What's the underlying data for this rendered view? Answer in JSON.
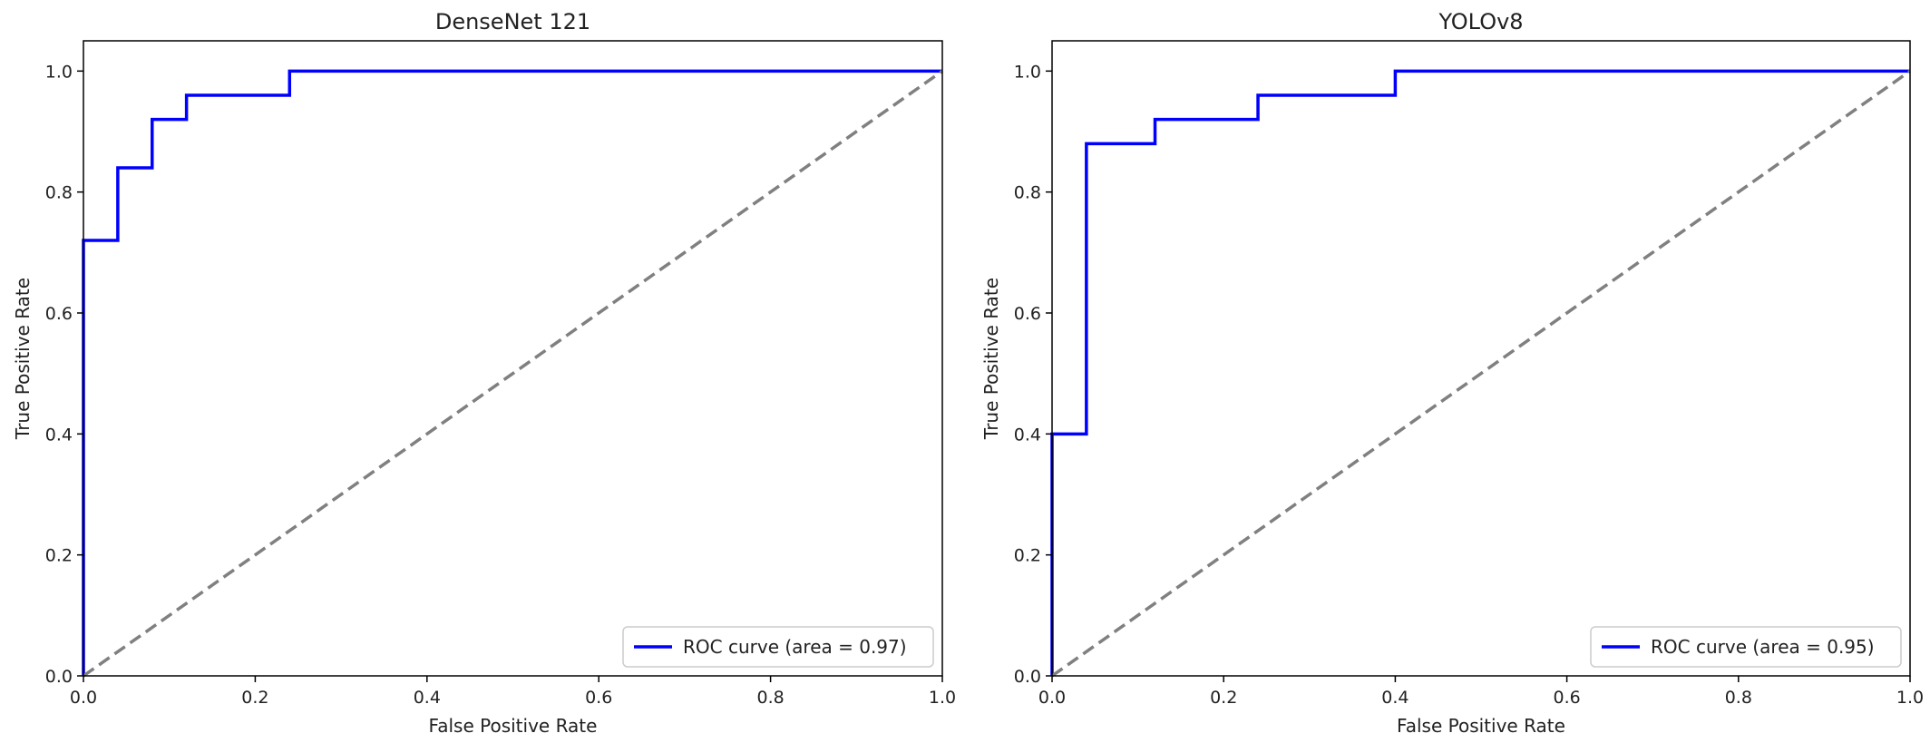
{
  "chart_data": [
    {
      "type": "line",
      "title": "DenseNet 121",
      "xlabel": "False Positive Rate",
      "ylabel": "True Positive Rate",
      "xlim": [
        0.0,
        1.0
      ],
      "ylim": [
        0.0,
        1.05
      ],
      "xticks": [
        "0.0",
        "0.2",
        "0.4",
        "0.6",
        "0.8",
        "1.0"
      ],
      "yticks": [
        "0.0",
        "0.2",
        "0.4",
        "0.6",
        "0.8",
        "1.0"
      ],
      "grid": false,
      "legend": {
        "placement": "lower-right",
        "entries": [
          "ROC curve (area = 0.97)"
        ]
      },
      "series": [
        {
          "name": "ROC curve (area = 0.97)",
          "color": "#0000ff",
          "style": "solid",
          "x": [
            0.0,
            0.0,
            0.04,
            0.04,
            0.08,
            0.08,
            0.12,
            0.12,
            0.24,
            0.24,
            1.0
          ],
          "y": [
            0.0,
            0.72,
            0.72,
            0.84,
            0.84,
            0.92,
            0.92,
            0.96,
            0.96,
            1.0,
            1.0
          ]
        },
        {
          "color": "#808080",
          "style": "dashed",
          "x": [
            0.0,
            1.0
          ],
          "y": [
            0.0,
            1.0
          ]
        }
      ]
    },
    {
      "type": "line",
      "title": "YOLOv8",
      "xlabel": "False Positive Rate",
      "ylabel": "True Positive Rate",
      "xlim": [
        0.0,
        1.0
      ],
      "ylim": [
        0.0,
        1.05
      ],
      "xticks": [
        "0.0",
        "0.2",
        "0.4",
        "0.6",
        "0.8",
        "1.0"
      ],
      "yticks": [
        "0.0",
        "0.2",
        "0.4",
        "0.6",
        "0.8",
        "1.0"
      ],
      "grid": false,
      "legend": {
        "placement": "lower-right",
        "entries": [
          "ROC curve (area = 0.95)"
        ]
      },
      "series": [
        {
          "name": "ROC curve (area = 0.95)",
          "color": "#0000ff",
          "style": "solid",
          "x": [
            0.0,
            0.0,
            0.04,
            0.04,
            0.12,
            0.12,
            0.24,
            0.24,
            0.4,
            0.4,
            1.0
          ],
          "y": [
            0.0,
            0.4,
            0.4,
            0.88,
            0.88,
            0.92,
            0.92,
            0.96,
            0.96,
            1.0,
            1.0
          ]
        },
        {
          "color": "#808080",
          "style": "dashed",
          "x": [
            0.0,
            1.0
          ],
          "y": [
            0.0,
            1.0
          ]
        }
      ]
    }
  ]
}
